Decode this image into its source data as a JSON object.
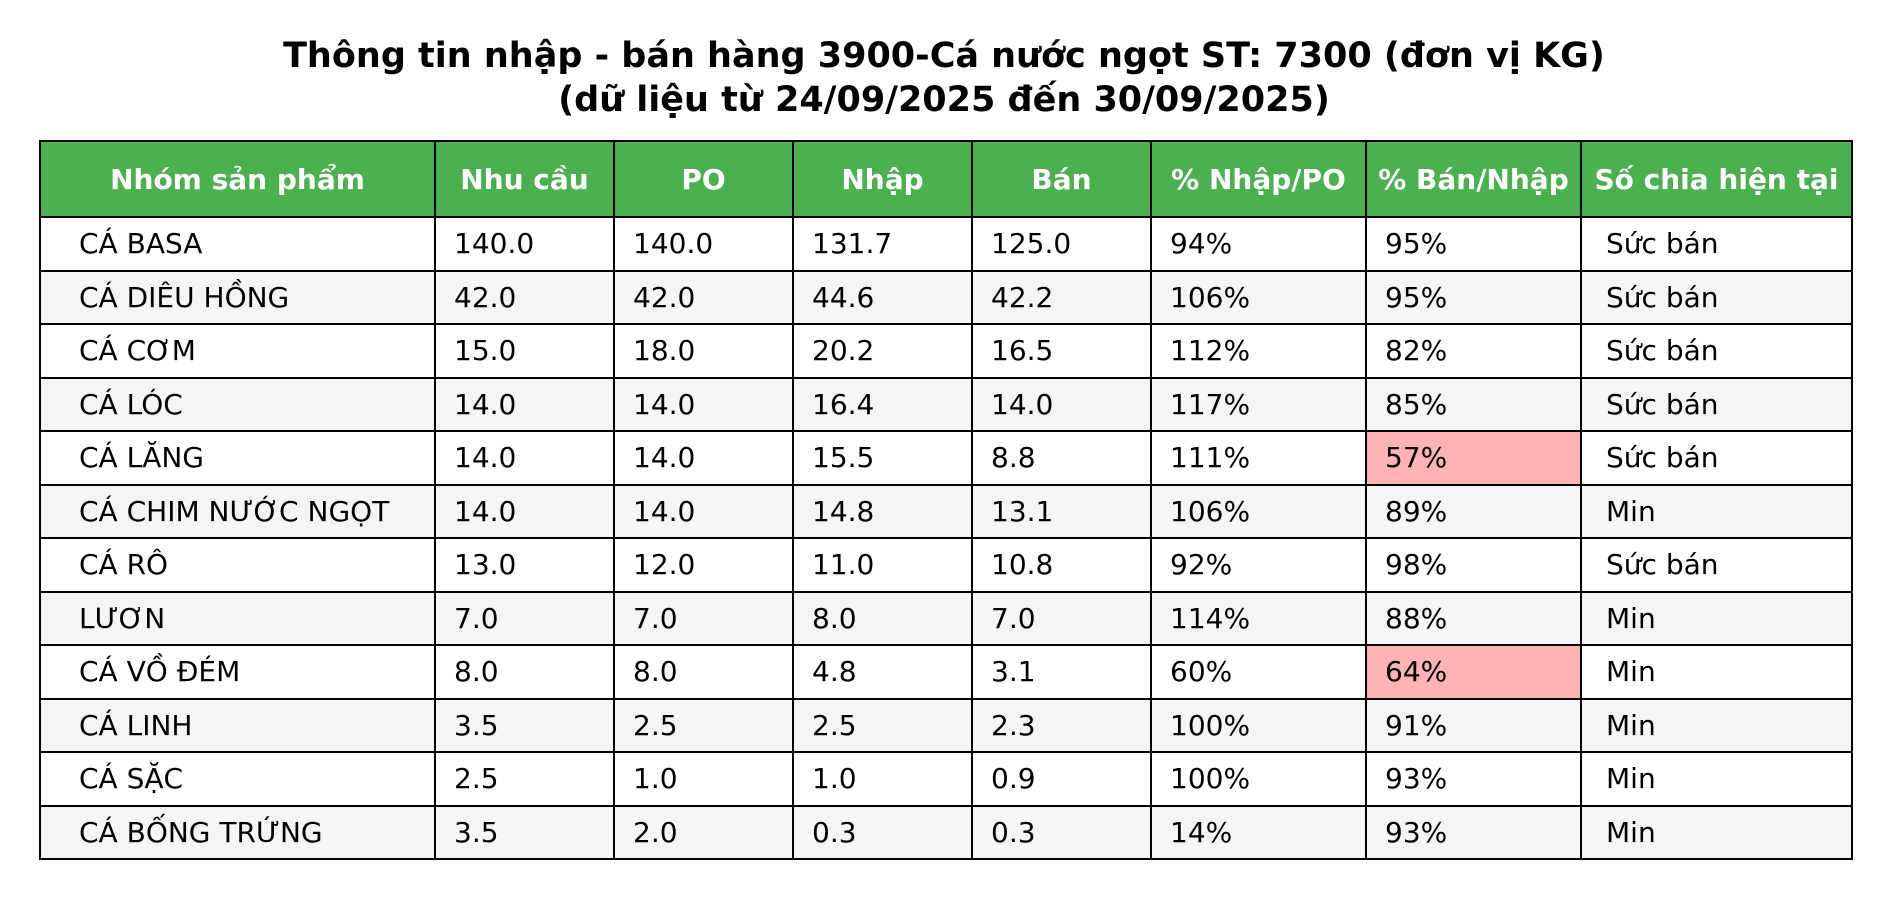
{
  "title_line1": "Thông tin nhập - bán hàng 3900-Cá nước ngọt ST: 7300 (đơn vị KG)",
  "title_line2": "(dữ liệu từ 24/09/2025 đến 30/09/2025)",
  "colors": {
    "header_bg": "#4caf50",
    "header_text": "#ffffff",
    "highlight": "#ffb3b3",
    "stripe": "#f5f5f5"
  },
  "chart_data": {
    "type": "table",
    "title": "Thông tin nhập - bán hàng 3900-Cá nước ngọt ST: 7300 (đơn vị KG) (dữ liệu từ 24/09/2025 đến 30/09/2025)",
    "columns": [
      "Nhóm sản phẩm",
      "Nhu cầu",
      "PO",
      "Nhập",
      "Bán",
      "% Nhập/PO",
      "% Bán/Nhập",
      "Số chia hiện tại"
    ],
    "rows": [
      {
        "cells": [
          "CÁ BASA",
          "140.0",
          "140.0",
          "131.7",
          "125.0",
          "94%",
          "95%",
          "Sức bán"
        ],
        "highlight": false
      },
      {
        "cells": [
          "CÁ DIÊU HỒNG",
          "42.0",
          "42.0",
          "44.6",
          "42.2",
          "106%",
          "95%",
          "Sức bán"
        ],
        "highlight": false
      },
      {
        "cells": [
          "CÁ CƠM",
          "15.0",
          "18.0",
          "20.2",
          "16.5",
          "112%",
          "82%",
          "Sức bán"
        ],
        "highlight": false
      },
      {
        "cells": [
          "CÁ LÓC",
          "14.0",
          "14.0",
          "16.4",
          "14.0",
          "117%",
          "85%",
          "Sức bán"
        ],
        "highlight": false
      },
      {
        "cells": [
          "CÁ LĂNG",
          "14.0",
          "14.0",
          "15.5",
          "8.8",
          "111%",
          "57%",
          "Sức bán"
        ],
        "highlight": true
      },
      {
        "cells": [
          "CÁ CHIM NƯỚC NGỌT",
          "14.0",
          "14.0",
          "14.8",
          "13.1",
          "106%",
          "89%",
          "Min"
        ],
        "highlight": false
      },
      {
        "cells": [
          "CÁ RÔ",
          "13.0",
          "12.0",
          "11.0",
          "10.8",
          "92%",
          "98%",
          "Sức bán"
        ],
        "highlight": false
      },
      {
        "cells": [
          "LƯƠN",
          "7.0",
          "7.0",
          "8.0",
          "7.0",
          "114%",
          "88%",
          "Min"
        ],
        "highlight": false
      },
      {
        "cells": [
          "CÁ VỒ ĐÉM",
          "8.0",
          "8.0",
          "4.8",
          "3.1",
          "60%",
          "64%",
          "Min"
        ],
        "highlight": true
      },
      {
        "cells": [
          "CÁ LINH",
          "3.5",
          "2.5",
          "2.5",
          "2.3",
          "100%",
          "91%",
          "Min"
        ],
        "highlight": false
      },
      {
        "cells": [
          "CÁ SẶC",
          "2.5",
          "1.0",
          "1.0",
          "0.9",
          "100%",
          "93%",
          "Min"
        ],
        "highlight": false
      },
      {
        "cells": [
          "CÁ BỐNG TRỨNG",
          "3.5",
          "2.0",
          "0.3",
          "0.3",
          "14%",
          "93%",
          "Min"
        ],
        "highlight": false
      }
    ]
  }
}
